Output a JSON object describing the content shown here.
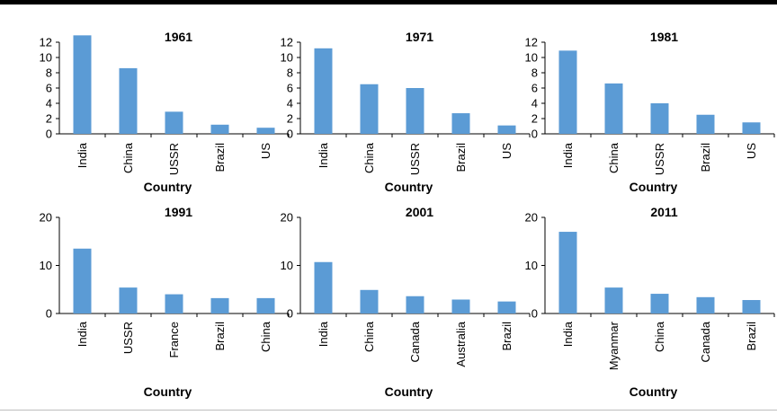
{
  "chart_data": [
    {
      "type": "bar",
      "title": "1961",
      "xlabel": "Country",
      "ylabel": "",
      "categories": [
        "India",
        "China",
        "USSR",
        "Brazil",
        "US"
      ],
      "values": [
        12.9,
        8.6,
        2.9,
        1.2,
        0.8
      ],
      "ylim": [
        0,
        12
      ],
      "yticks": [
        "0",
        "2",
        "4",
        "6",
        "8",
        "10",
        "12"
      ],
      "color": "#5b9bd5"
    },
    {
      "type": "bar",
      "title": "1971",
      "xlabel": "Country",
      "ylabel": "",
      "categories": [
        "India",
        "China",
        "USSR",
        "Brazil",
        "US"
      ],
      "values": [
        11.2,
        6.5,
        6.0,
        2.7,
        1.1
      ],
      "ylim": [
        0,
        12
      ],
      "yticks": [
        "0",
        "2",
        "4",
        "6",
        "8",
        "10",
        "12"
      ],
      "color": "#5b9bd5"
    },
    {
      "type": "bar",
      "title": "1981",
      "xlabel": "Country",
      "ylabel": "",
      "categories": [
        "India",
        "China",
        "USSR",
        "Brazil",
        "US"
      ],
      "values": [
        10.9,
        6.6,
        4.0,
        2.5,
        1.5
      ],
      "ylim": [
        0,
        12
      ],
      "yticks": [
        "0",
        "2",
        "4",
        "6",
        "8",
        "10",
        "12"
      ],
      "color": "#5b9bd5"
    },
    {
      "type": "bar",
      "title": "1991",
      "xlabel": "Country",
      "ylabel": "",
      "categories": [
        "India",
        "USSR",
        "France",
        "Brazil",
        "China"
      ],
      "values": [
        13.5,
        5.4,
        4.0,
        3.2,
        3.2
      ],
      "ylim": [
        0,
        20
      ],
      "yticks": [
        "0",
        "10",
        "20"
      ],
      "color": "#5b9bd5"
    },
    {
      "type": "bar",
      "title": "2001",
      "xlabel": "Country",
      "ylabel": "",
      "categories": [
        "India",
        "China",
        "Canada",
        "Australia",
        "Brazil"
      ],
      "values": [
        10.7,
        4.9,
        3.6,
        2.9,
        2.5
      ],
      "ylim": [
        0,
        20
      ],
      "yticks": [
        "0",
        "10",
        "20"
      ],
      "color": "#5b9bd5"
    },
    {
      "type": "bar",
      "title": "2011",
      "xlabel": "Country",
      "ylabel": "",
      "categories": [
        "India",
        "Myanmar",
        "China",
        "Canada",
        "Brazil"
      ],
      "values": [
        17.0,
        5.4,
        4.1,
        3.4,
        2.8
      ],
      "ylim": [
        0,
        20
      ],
      "yticks": [
        "0",
        "10",
        "20"
      ],
      "color": "#5b9bd5"
    }
  ]
}
